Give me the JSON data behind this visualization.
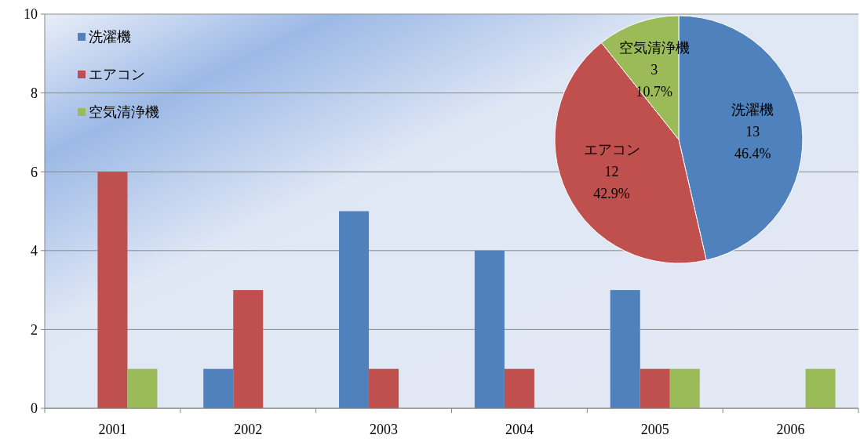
{
  "chart_data": [
    {
      "type": "bar",
      "categories": [
        "2001",
        "2002",
        "2003",
        "2004",
        "2005",
        "2006"
      ],
      "series": [
        {
          "name": "洗濯機",
          "color": "#4f81bd",
          "values": [
            0,
            1,
            5,
            4,
            3,
            0
          ]
        },
        {
          "name": "エアコン",
          "color": "#c0504d",
          "values": [
            6,
            3,
            1,
            1,
            1,
            0
          ]
        },
        {
          "name": "空気清浄機",
          "color": "#9bbb59",
          "values": [
            1,
            0,
            0,
            0,
            1,
            1
          ]
        }
      ],
      "ylim": [
        0,
        10
      ],
      "yticks": [
        0,
        2,
        4,
        6,
        8,
        10
      ],
      "grid": "y",
      "legend": "top left"
    },
    {
      "type": "pie",
      "categories": [
        "洗濯機",
        "エアコン",
        "空気清浄機"
      ],
      "values": [
        13,
        12,
        3
      ],
      "colors": [
        "#4f81bd",
        "#c0504d",
        "#9bbb59"
      ],
      "value_labels": [
        "13\n46.4%",
        "12\n42.9%",
        "3\n10.7%"
      ]
    }
  ]
}
